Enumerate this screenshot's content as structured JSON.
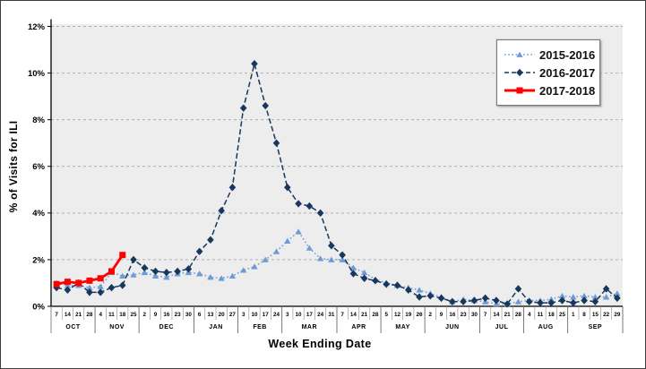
{
  "figure": {
    "background": "#ffffff",
    "border_color": "#3d3d3d",
    "plot_background": "#ededed",
    "gridline_color": "#b0b0b0",
    "axis_color": "#000000"
  },
  "chart_data": {
    "type": "line",
    "title": "",
    "xlabel": "Week Ending  Date",
    "ylabel": "% of Visits for ILI",
    "ylim": [
      0,
      12
    ],
    "ytick_step": 2,
    "ytick_labels": [
      "0%",
      "2%",
      "4%",
      "6%",
      "8%",
      "10%",
      "12%"
    ],
    "grid": "horizontal dashed",
    "legend_position": "top-right",
    "x_axis_structure": "52 weekly ticks grouped into month bands",
    "months": [
      {
        "label": "OCT",
        "days": [
          7,
          14,
          21,
          28
        ]
      },
      {
        "label": "NOV",
        "days": [
          4,
          11,
          18,
          25
        ]
      },
      {
        "label": "DEC",
        "days": [
          2,
          9,
          16,
          23,
          30
        ]
      },
      {
        "label": "JAN",
        "days": [
          6,
          13,
          20,
          27
        ]
      },
      {
        "label": "FEB",
        "days": [
          3,
          10,
          17,
          24
        ]
      },
      {
        "label": "MAR",
        "days": [
          3,
          10,
          17,
          24,
          31
        ]
      },
      {
        "label": "APR",
        "days": [
          7,
          14,
          21,
          28
        ]
      },
      {
        "label": "MAY",
        "days": [
          5,
          12,
          19,
          26
        ]
      },
      {
        "label": "JUN",
        "days": [
          2,
          9,
          16,
          23,
          30
        ]
      },
      {
        "label": "JUL",
        "days": [
          7,
          14,
          21,
          28
        ]
      },
      {
        "label": "AUG",
        "days": [
          4,
          11,
          18,
          25
        ]
      },
      {
        "label": "SEP",
        "days": [
          1,
          8,
          15,
          22,
          29
        ]
      }
    ],
    "series": [
      {
        "name": "2015-2016",
        "color": "#6e9bd4",
        "line_style": "dotted",
        "marker": "triangle",
        "values": [
          1.0,
          0.9,
          0.9,
          0.8,
          0.85,
          1.45,
          1.3,
          1.35,
          1.45,
          1.3,
          1.25,
          1.4,
          1.45,
          1.4,
          1.25,
          1.2,
          1.3,
          1.55,
          1.7,
          2.0,
          2.35,
          2.8,
          3.2,
          2.5,
          2.05,
          2.0,
          2.0,
          1.65,
          1.45,
          1.15,
          1.0,
          0.9,
          0.8,
          0.7,
          0.55,
          0.4,
          0.2,
          0.3,
          0.25,
          0.2,
          0.1,
          0.1,
          0.2,
          0.25,
          0.25,
          0.3,
          0.45,
          0.4,
          0.45,
          0.4,
          0.4,
          0.55
        ]
      },
      {
        "name": "2016-2017",
        "color": "#17375e",
        "line_style": "dashed",
        "marker": "diamond",
        "values": [
          0.8,
          0.7,
          1.0,
          0.6,
          0.6,
          0.8,
          0.9,
          2.0,
          1.65,
          1.5,
          1.45,
          1.5,
          1.6,
          2.35,
          2.85,
          4.1,
          5.1,
          8.5,
          10.4,
          8.6,
          7.0,
          5.1,
          4.4,
          4.3,
          4.0,
          2.6,
          2.2,
          1.4,
          1.2,
          1.1,
          0.95,
          0.9,
          0.7,
          0.4,
          0.45,
          0.35,
          0.2,
          0.2,
          0.25,
          0.35,
          0.25,
          0.1,
          0.75,
          0.2,
          0.15,
          0.15,
          0.25,
          0.15,
          0.25,
          0.2,
          0.75,
          0.35
        ]
      },
      {
        "name": "2017-2018",
        "color": "#ff0000",
        "line_style": "solid",
        "marker": "square",
        "values": [
          0.95,
          1.05,
          1.0,
          1.1,
          1.2,
          1.5,
          2.2
        ]
      }
    ]
  }
}
